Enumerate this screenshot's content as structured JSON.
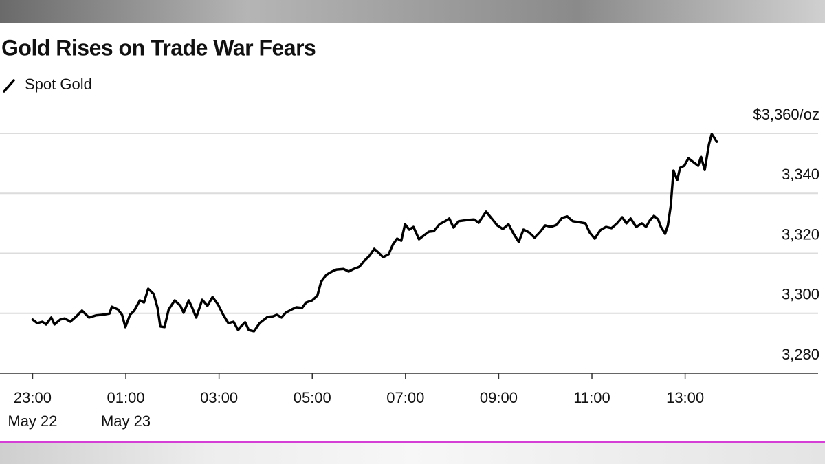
{
  "chart_data": {
    "type": "line",
    "title": "Gold Rises on Trade War Fears",
    "x": [
      0.0,
      0.1,
      0.21,
      0.29,
      0.4,
      0.47,
      0.59,
      0.69,
      0.81,
      0.94,
      1.06,
      1.21,
      1.36,
      1.5,
      1.65,
      1.7,
      1.83,
      1.92,
      1.99,
      2.09,
      2.18,
      2.3,
      2.39,
      2.48,
      2.6,
      2.68,
      2.74,
      2.83,
      2.92,
      3.05,
      3.17,
      3.24,
      3.35,
      3.42,
      3.51,
      3.64,
      3.75,
      3.86,
      3.98,
      4.09,
      4.2,
      4.31,
      4.41,
      4.48,
      4.56,
      4.64,
      4.75,
      4.87,
      5.04,
      5.16,
      5.24,
      5.34,
      5.43,
      5.56,
      5.66,
      5.78,
      5.87,
      6.0,
      6.11,
      6.19,
      6.3,
      6.42,
      6.52,
      6.67,
      6.78,
      6.89,
      7.01,
      7.11,
      7.23,
      7.33,
      7.43,
      7.52,
      7.64,
      7.73,
      7.82,
      7.91,
      7.99,
      8.08,
      8.17,
      8.29,
      8.38,
      8.5,
      8.61,
      8.73,
      8.85,
      8.94,
      9.03,
      9.14,
      9.32,
      9.47,
      9.57,
      9.73,
      9.85,
      9.97,
      10.09,
      10.21,
      10.32,
      10.43,
      10.53,
      10.65,
      10.77,
      10.88,
      11.0,
      11.12,
      11.24,
      11.36,
      11.47,
      11.59,
      11.71,
      11.86,
      11.95,
      12.06,
      12.18,
      12.3,
      12.42,
      12.54,
      12.65,
      12.74,
      12.83,
      12.95,
      13.07,
      13.16,
      13.24,
      13.33,
      13.42,
      13.48,
      13.57,
      13.63,
      13.69,
      13.75,
      13.83,
      13.89,
      13.98,
      14.07,
      14.16,
      14.28,
      14.34,
      14.42,
      14.51,
      14.57,
      14.68
    ],
    "series": [
      {
        "name": "Spot Gold",
        "color": "#000000",
        "values": [
          3297.9,
          3296.7,
          3297.2,
          3296.3,
          3298.6,
          3296.3,
          3297.9,
          3298.3,
          3297.2,
          3299.0,
          3300.9,
          3298.6,
          3299.3,
          3299.5,
          3299.9,
          3302.2,
          3301.3,
          3299.5,
          3295.4,
          3299.5,
          3300.9,
          3304.3,
          3303.6,
          3308.2,
          3306.4,
          3301.8,
          3295.6,
          3295.4,
          3301.3,
          3304.3,
          3302.5,
          3300.2,
          3304.3,
          3302.0,
          3298.6,
          3304.5,
          3302.5,
          3305.4,
          3302.9,
          3299.5,
          3296.7,
          3297.2,
          3294.4,
          3295.8,
          3297.0,
          3294.4,
          3294.0,
          3296.7,
          3298.8,
          3299.0,
          3299.5,
          3298.6,
          3300.2,
          3301.3,
          3302.0,
          3301.8,
          3303.6,
          3304.3,
          3305.9,
          3310.5,
          3312.8,
          3313.9,
          3314.6,
          3314.8,
          3313.9,
          3314.8,
          3315.5,
          3317.4,
          3319.2,
          3321.5,
          3320.1,
          3318.7,
          3319.7,
          3322.9,
          3324.9,
          3324.2,
          3329.7,
          3327.9,
          3328.8,
          3324.7,
          3325.8,
          3327.2,
          3327.4,
          3329.7,
          3330.7,
          3331.6,
          3328.6,
          3330.7,
          3331.1,
          3331.3,
          3330.2,
          3333.9,
          3331.6,
          3329.3,
          3328.1,
          3329.7,
          3326.5,
          3323.8,
          3327.9,
          3327.0,
          3325.2,
          3327.0,
          3329.3,
          3328.8,
          3329.5,
          3331.8,
          3332.3,
          3330.7,
          3330.4,
          3330.0,
          3327.0,
          3324.9,
          3327.7,
          3328.8,
          3328.4,
          3330.0,
          3332.0,
          3330.0,
          3331.6,
          3328.8,
          3330.0,
          3328.8,
          3330.9,
          3332.5,
          3331.3,
          3328.8,
          3326.5,
          3329.3,
          3335.7,
          3347.6,
          3344.4,
          3348.5,
          3349.2,
          3351.7,
          3350.6,
          3349.2,
          3352.2,
          3347.8,
          3356.3,
          3359.8,
          3357.2
        ]
      }
    ],
    "xlim": [
      -0.7,
      17
    ],
    "xticks": [
      {
        "value": 0,
        "label": "23:00"
      },
      {
        "value": 2,
        "label": "01:00"
      },
      {
        "value": 4,
        "label": "03:00"
      },
      {
        "value": 6,
        "label": "05:00"
      },
      {
        "value": 8,
        "label": "07:00"
      },
      {
        "value": 10,
        "label": "09:00"
      },
      {
        "value": 12,
        "label": "11:00"
      },
      {
        "value": 14,
        "label": "13:00"
      }
    ],
    "xtick_dates": [
      {
        "value": 0,
        "label": "May 22"
      },
      {
        "value": 2,
        "label": "May 23"
      }
    ],
    "ylim": [
      3280,
      3360
    ],
    "yticks": [
      {
        "value": 3280,
        "label": "3,280"
      },
      {
        "value": 3300,
        "label": "3,300"
      },
      {
        "value": 3320,
        "label": "3,320"
      },
      {
        "value": 3340,
        "label": "3,340"
      },
      {
        "value": 3360,
        "label": "$3,360/oz"
      }
    ],
    "grid": true
  }
}
